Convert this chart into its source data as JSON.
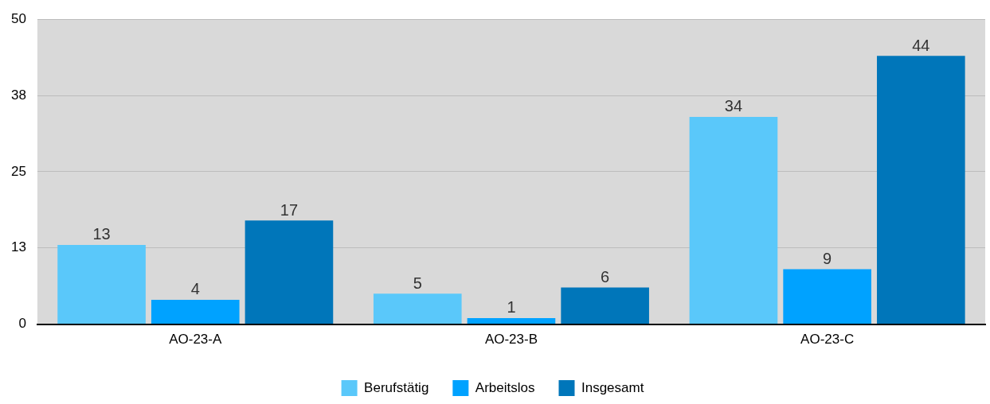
{
  "chart_data": {
    "type": "bar",
    "categories": [
      "AO-23-A",
      "AO-23-B",
      "AO-23-C"
    ],
    "series": [
      {
        "name": "Berufstätig",
        "color": "#5ac8fa",
        "values": [
          13,
          5,
          34
        ]
      },
      {
        "name": "Arbeitslos",
        "color": "#00a2ff",
        "values": [
          4,
          1,
          9
        ]
      },
      {
        "name": "Insgesamt",
        "color": "#0076ba",
        "values": [
          17,
          6,
          44
        ]
      }
    ],
    "ylim": [
      0,
      50
    ],
    "yticks": [
      0,
      {
        "value": 12.5,
        "label": "13"
      },
      25,
      {
        "value": 37.5,
        "label": "38"
      },
      50
    ],
    "grid": "y",
    "legend": "bottom",
    "data_labels": true
  }
}
